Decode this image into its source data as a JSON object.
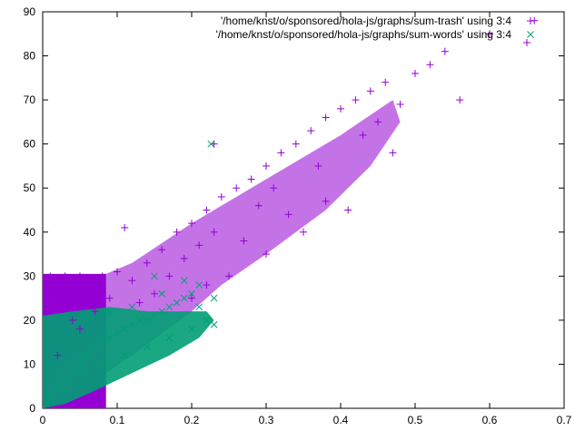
{
  "chart_data": {
    "type": "scatter",
    "title": "",
    "xlabel": "",
    "ylabel": "",
    "xlim": [
      0,
      0.7
    ],
    "ylim": [
      0,
      90
    ],
    "xticks": [
      "0",
      "0.1",
      "0.2",
      "0.3",
      "0.4",
      "0.5",
      "0.6",
      "0.7"
    ],
    "yticks": [
      "0",
      "10",
      "20",
      "30",
      "40",
      "50",
      "60",
      "70",
      "80",
      "90"
    ],
    "grid": false,
    "legend_position": "top-right",
    "series": [
      {
        "name": "'/home/knst/o/sponsored/hola-js/graphs/sum-trash' using 3:4",
        "marker": "plus",
        "color": "#9400d3",
        "points": [
          [
            0.01,
            30
          ],
          [
            0.03,
            30
          ],
          [
            0.05,
            30
          ],
          [
            0.08,
            30
          ],
          [
            0.1,
            31
          ],
          [
            0.12,
            29
          ],
          [
            0.11,
            41
          ],
          [
            0.14,
            33
          ],
          [
            0.16,
            36
          ],
          [
            0.18,
            40
          ],
          [
            0.2,
            42
          ],
          [
            0.22,
            45
          ],
          [
            0.24,
            48
          ],
          [
            0.26,
            50
          ],
          [
            0.28,
            52
          ],
          [
            0.3,
            55
          ],
          [
            0.32,
            58
          ],
          [
            0.34,
            60
          ],
          [
            0.36,
            63
          ],
          [
            0.38,
            66
          ],
          [
            0.4,
            68
          ],
          [
            0.42,
            70
          ],
          [
            0.44,
            72
          ],
          [
            0.46,
            74
          ],
          [
            0.5,
            76
          ],
          [
            0.52,
            78
          ],
          [
            0.54,
            81
          ],
          [
            0.56,
            70
          ],
          [
            0.6,
            85
          ],
          [
            0.65,
            83
          ],
          [
            0.66,
            88
          ],
          [
            0.23,
            60
          ],
          [
            0.41,
            45
          ],
          [
            0.47,
            58
          ],
          [
            0.2,
            25
          ],
          [
            0.25,
            30
          ],
          [
            0.3,
            35
          ],
          [
            0.35,
            40
          ],
          [
            0.38,
            47
          ],
          [
            0.33,
            44
          ],
          [
            0.27,
            38
          ],
          [
            0.15,
            26
          ],
          [
            0.17,
            30
          ],
          [
            0.19,
            34
          ],
          [
            0.21,
            37
          ],
          [
            0.23,
            40
          ],
          [
            0.29,
            46
          ],
          [
            0.31,
            50
          ],
          [
            0.37,
            55
          ],
          [
            0.43,
            62
          ],
          [
            0.45,
            65
          ],
          [
            0.48,
            69
          ],
          [
            0.07,
            22
          ],
          [
            0.09,
            25
          ],
          [
            0.13,
            24
          ],
          [
            0.05,
            18
          ],
          [
            0.02,
            12
          ],
          [
            0.04,
            20
          ],
          [
            0.06,
            26
          ],
          [
            0.22,
            28
          ]
        ],
        "fills": [
          {
            "x": [
              0.0,
              0.085
            ],
            "y": [
              0,
              30.5
            ],
            "note_as_data": "dense band"
          }
        ]
      },
      {
        "name": "'/home/knst/o/sponsored/hola-js/graphs/sum-words' using 3:4",
        "marker": "x",
        "color": "#009e73",
        "points": [
          [
            0.005,
            1
          ],
          [
            0.01,
            3
          ],
          [
            0.02,
            5
          ],
          [
            0.03,
            7
          ],
          [
            0.04,
            9
          ],
          [
            0.05,
            11
          ],
          [
            0.06,
            12
          ],
          [
            0.07,
            14
          ],
          [
            0.08,
            15
          ],
          [
            0.09,
            16
          ],
          [
            0.1,
            17
          ],
          [
            0.11,
            18
          ],
          [
            0.12,
            19
          ],
          [
            0.13,
            20
          ],
          [
            0.14,
            20
          ],
          [
            0.15,
            21
          ],
          [
            0.16,
            22
          ],
          [
            0.17,
            23
          ],
          [
            0.18,
            24
          ],
          [
            0.19,
            25
          ],
          [
            0.2,
            26
          ],
          [
            0.21,
            23
          ],
          [
            0.22,
            20
          ],
          [
            0.23,
            19
          ],
          [
            0.2,
            18
          ],
          [
            0.17,
            16
          ],
          [
            0.14,
            14
          ],
          [
            0.11,
            12
          ],
          [
            0.08,
            10
          ],
          [
            0.05,
            8
          ],
          [
            0.03,
            4
          ],
          [
            0.06,
            21
          ],
          [
            0.15,
            30
          ],
          [
            0.16,
            26
          ],
          [
            0.19,
            29
          ],
          [
            0.226,
            60
          ],
          [
            0.23,
            25
          ],
          [
            0.21,
            28
          ],
          [
            0.09,
            22
          ],
          [
            0.12,
            23
          ]
        ]
      }
    ]
  }
}
